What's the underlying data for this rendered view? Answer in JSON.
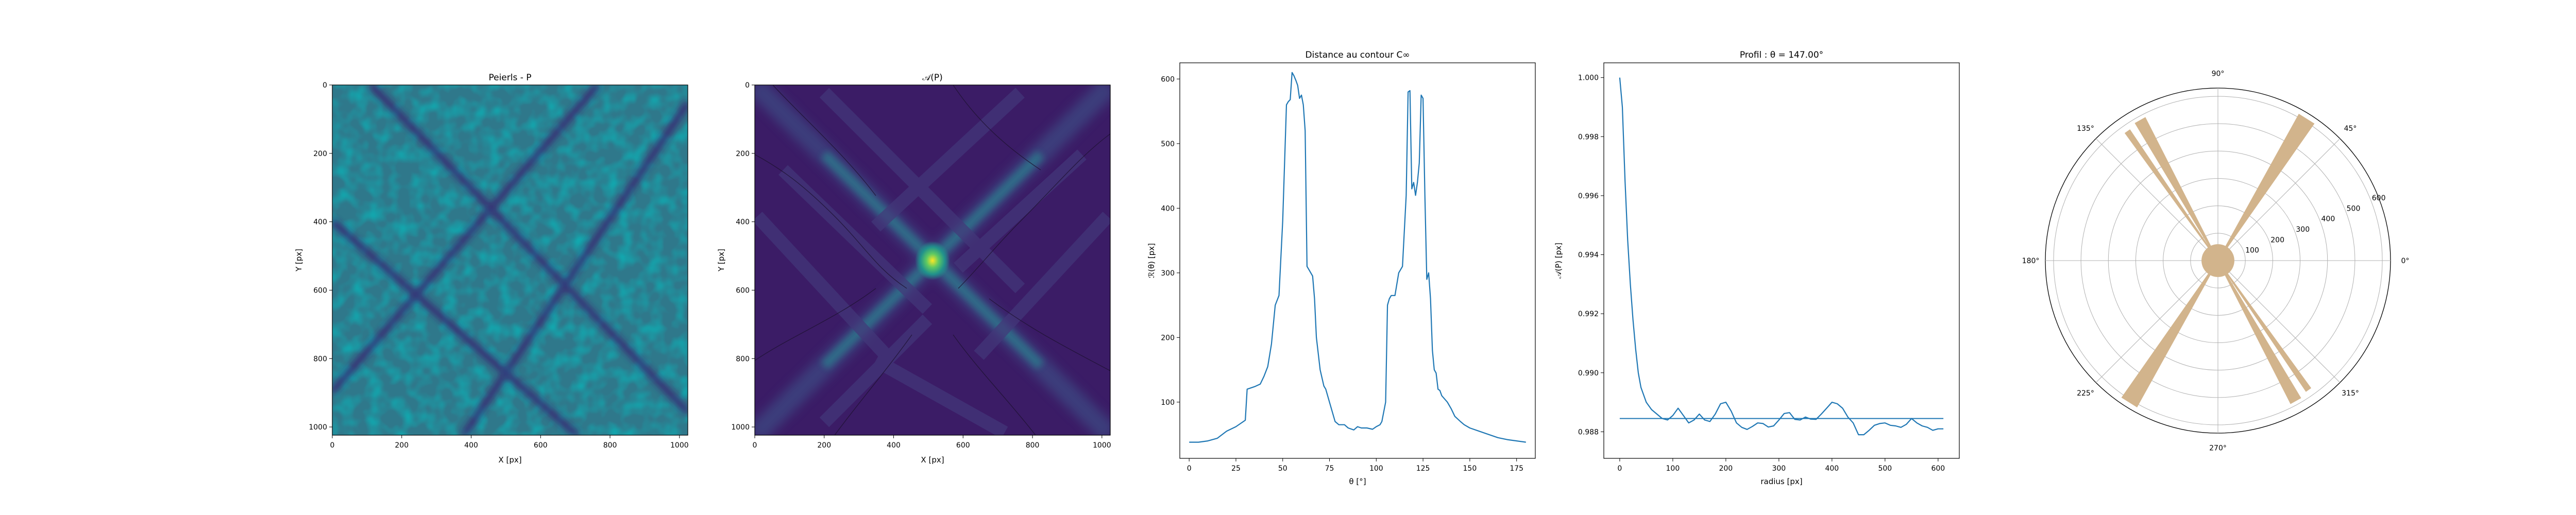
{
  "chart_data": [
    {
      "type": "heatmap",
      "title": "Peierls - P",
      "xlabel": "X [px]",
      "ylabel": "Y [px]",
      "xlim": [
        0,
        1024
      ],
      "ylim": [
        1024,
        0
      ],
      "x_ticks": [
        "0",
        "200",
        "400",
        "600",
        "800",
        "1000"
      ],
      "y_ticks": [
        "0",
        "200",
        "400",
        "600",
        "800",
        "1000"
      ],
      "colormap": "viridis",
      "features": "noisy texture with two crossing dark diagonal line bands"
    },
    {
      "type": "heatmap",
      "title": "𝒜(P)",
      "xlabel": "X [px]",
      "ylabel": "Y [px]",
      "xlim": [
        0,
        1024
      ],
      "ylim": [
        1024,
        0
      ],
      "x_ticks": [
        "0",
        "200",
        "400",
        "600",
        "800",
        "1000"
      ],
      "y_ticks": [
        "0",
        "200",
        "400",
        "600",
        "800",
        "1000"
      ],
      "colormap": "viridis",
      "features": "autocorrelation with bright center peak at (512,512) and X-shaped ridges, dark contour lines"
    },
    {
      "type": "line",
      "title": "Distance au contour C∞",
      "xlabel": "θ [°]",
      "ylabel": "ℛ(θ) [px]",
      "xlim": [
        -5,
        185
      ],
      "ylim": [
        13,
        625
      ],
      "x_ticks": [
        0,
        25,
        50,
        75,
        100,
        125,
        150,
        175
      ],
      "y_ticks": [
        100,
        200,
        300,
        400,
        500,
        600
      ],
      "color": "#1f77b4",
      "x": [
        0,
        5,
        10,
        15,
        20,
        25,
        28,
        30,
        31,
        33,
        35,
        38,
        40,
        42,
        44,
        46,
        48,
        50,
        52,
        53,
        54,
        55,
        56,
        57,
        58,
        59,
        60,
        61,
        62,
        63,
        64,
        65,
        66,
        67,
        68,
        70,
        72,
        73,
        75,
        78,
        80,
        83,
        85,
        88,
        90,
        92,
        95,
        98,
        100,
        102,
        103,
        105,
        106,
        107,
        108,
        110,
        112,
        114,
        116,
        117,
        118,
        119,
        120,
        121,
        122,
        123,
        124,
        125,
        126,
        127,
        128,
        129,
        130,
        131,
        132,
        133,
        134,
        135,
        138,
        140,
        142,
        145,
        147,
        150,
        155,
        160,
        165,
        170,
        175,
        180
      ],
      "y": [
        38,
        38,
        40,
        44,
        55,
        62,
        68,
        72,
        120,
        122,
        124,
        128,
        140,
        155,
        190,
        250,
        265,
        380,
        560,
        565,
        568,
        610,
        605,
        598,
        590,
        570,
        575,
        560,
        520,
        310,
        305,
        300,
        295,
        260,
        200,
        150,
        125,
        120,
        100,
        70,
        65,
        65,
        60,
        57,
        62,
        60,
        60,
        58,
        62,
        65,
        70,
        100,
        250,
        260,
        265,
        265,
        300,
        310,
        420,
        580,
        582,
        430,
        440,
        420,
        440,
        470,
        575,
        570,
        420,
        290,
        300,
        260,
        180,
        150,
        145,
        120,
        118,
        110,
        100,
        90,
        78,
        70,
        65,
        60,
        55,
        50,
        45,
        42,
        40,
        38
      ]
    },
    {
      "type": "line",
      "title": "Profil : θ = 147.00°",
      "xlabel": "radius [px]",
      "ylabel": "𝒜(P) [px]",
      "xlim": [
        -30,
        640
      ],
      "ylim": [
        0.9871,
        1.0005
      ],
      "x_ticks": [
        0,
        100,
        200,
        300,
        400,
        500,
        600
      ],
      "y_ticks": [
        "0.988",
        "0.990",
        "0.992",
        "0.994",
        "0.996",
        "0.998",
        "1.000"
      ],
      "color": "#1f77b4",
      "reference_level": 0.98845,
      "x": [
        0,
        5,
        10,
        15,
        20,
        25,
        30,
        35,
        40,
        50,
        60,
        70,
        80,
        90,
        100,
        110,
        120,
        130,
        140,
        150,
        160,
        170,
        180,
        190,
        200,
        210,
        220,
        230,
        240,
        250,
        260,
        270,
        280,
        290,
        300,
        310,
        320,
        330,
        340,
        350,
        360,
        370,
        380,
        390,
        400,
        410,
        420,
        430,
        440,
        450,
        460,
        470,
        480,
        490,
        500,
        510,
        520,
        530,
        540,
        550,
        560,
        570,
        580,
        590,
        600,
        610
      ],
      "y": [
        1.0,
        0.999,
        0.9965,
        0.9945,
        0.993,
        0.9918,
        0.9908,
        0.99,
        0.9895,
        0.989,
        0.98875,
        0.9886,
        0.98845,
        0.9884,
        0.98855,
        0.9888,
        0.98855,
        0.9883,
        0.9884,
        0.9886,
        0.9884,
        0.98835,
        0.9886,
        0.98895,
        0.989,
        0.9887,
        0.9883,
        0.98815,
        0.98808,
        0.98818,
        0.9883,
        0.98828,
        0.98816,
        0.9882,
        0.9884,
        0.98862,
        0.98865,
        0.98842,
        0.9884,
        0.9885,
        0.98843,
        0.98842,
        0.9886,
        0.9888,
        0.989,
        0.98895,
        0.9888,
        0.9885,
        0.9883,
        0.9879,
        0.9879,
        0.98805,
        0.98822,
        0.98828,
        0.9883,
        0.98822,
        0.9882,
        0.98815,
        0.98825,
        0.98845,
        0.9883,
        0.9882,
        0.98815,
        0.98805,
        0.9881,
        0.9881
      ]
    },
    {
      "type": "polar",
      "theta_ticks": [
        "0°",
        "45°",
        "90°",
        "135°",
        "180°",
        "225°",
        "270°",
        "315°"
      ],
      "r_ticks": [
        "100",
        "200",
        "300",
        "400",
        "500",
        "600"
      ],
      "rmax": 630,
      "color": "#d2b48c",
      "features": "filled X-shaped wedges along ~60° and ~120° (and opposite)"
    }
  ]
}
